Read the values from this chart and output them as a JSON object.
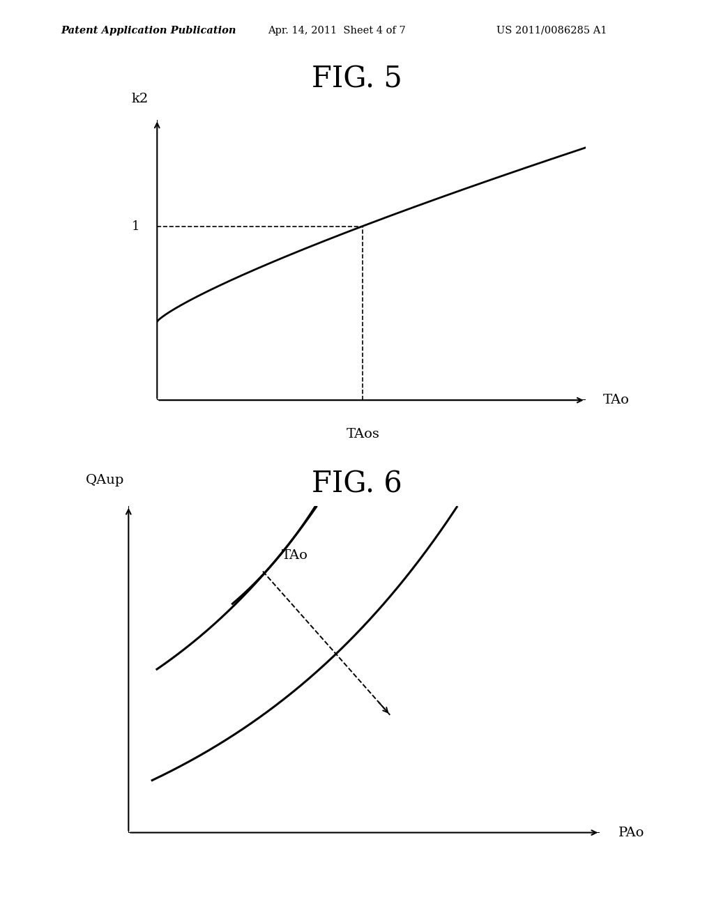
{
  "background_color": "#ffffff",
  "header_left": "Patent Application Publication",
  "header_mid": "Apr. 14, 2011  Sheet 4 of 7",
  "header_right": "US 2011/0086285 A1",
  "fig5_title": "FIG. 5",
  "fig6_title": "FIG. 6",
  "fig5_ylabel": "k2",
  "fig5_xlabel": "TAo",
  "fig5_ref_label": "TAos",
  "fig5_y1_label": "1",
  "fig6_ylabel": "QAup",
  "fig6_xlabel": "PAo",
  "fig6_tao_label": "TAo",
  "line_color": "#000000",
  "text_color": "#000000",
  "font_size_header": 10.5,
  "font_size_title": 30,
  "font_size_axis_label": 14,
  "font_size_tick": 13
}
